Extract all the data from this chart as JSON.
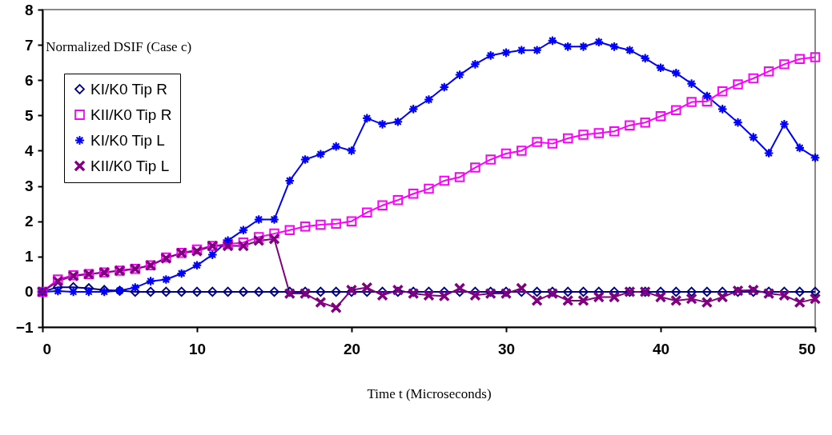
{
  "chart_data": {
    "type": "line",
    "title": "Normalized DSIF (Case c)",
    "xlabel": "Time t (Microseconds)",
    "x": [
      0,
      1,
      2,
      3,
      4,
      5,
      6,
      7,
      8,
      9,
      10,
      11,
      12,
      13,
      14,
      15,
      16,
      17,
      18,
      19,
      20,
      21,
      22,
      23,
      24,
      25,
      26,
      27,
      28,
      29,
      30,
      31,
      32,
      33,
      34,
      35,
      36,
      37,
      38,
      39,
      40,
      41,
      42,
      43,
      44,
      45,
      46,
      47,
      48,
      49,
      50
    ],
    "xlim": [
      0,
      50
    ],
    "xticks": [
      0,
      10,
      20,
      30,
      40,
      50
    ],
    "ylim": [
      -1,
      8
    ],
    "yticks": [
      -1,
      0,
      1,
      2,
      3,
      4,
      5,
      6,
      7,
      8
    ],
    "grid": false,
    "legend": "top left",
    "line_style": "solid",
    "series": [
      {
        "name": "KI/K0 Tip R",
        "color": "#000080",
        "marker": "diamond",
        "values": [
          0,
          0.13,
          0.13,
          0.1,
          0.05,
          0.03,
          0,
          0,
          0,
          0,
          0,
          0,
          0,
          0,
          0,
          0,
          0,
          0,
          0,
          0,
          0,
          0,
          0,
          0,
          0,
          0,
          0,
          0,
          0,
          0,
          0,
          0,
          0,
          0,
          0,
          0,
          0,
          0,
          0,
          0,
          0,
          0,
          0,
          0,
          0,
          0,
          0,
          0,
          0,
          0,
          0
        ]
      },
      {
        "name": "KII/K0 Tip R",
        "color": "#ff00ff",
        "marker": "square",
        "values": [
          0,
          0.35,
          0.47,
          0.5,
          0.55,
          0.6,
          0.65,
          0.75,
          0.97,
          1.1,
          1.2,
          1.3,
          1.35,
          1.4,
          1.55,
          1.65,
          1.75,
          1.85,
          1.9,
          1.93,
          2.0,
          2.25,
          2.45,
          2.6,
          2.78,
          2.92,
          3.15,
          3.25,
          3.52,
          3.75,
          3.92,
          4.0,
          4.25,
          4.2,
          4.35,
          4.45,
          4.5,
          4.55,
          4.72,
          4.8,
          4.98,
          5.15,
          5.38,
          5.4,
          5.68,
          5.88,
          6.05,
          6.25,
          6.45,
          6.6,
          6.65
        ]
      },
      {
        "name": "KI/K0 Tip L",
        "color": "#0000ff",
        "marker": "star",
        "values": [
          0,
          0.02,
          0,
          0,
          0,
          0.03,
          0.12,
          0.3,
          0.35,
          0.52,
          0.75,
          1.05,
          1.45,
          1.75,
          2.05,
          2.05,
          3.15,
          3.75,
          3.9,
          4.12,
          4.0,
          4.92,
          4.75,
          4.82,
          5.18,
          5.45,
          5.8,
          6.15,
          6.45,
          6.7,
          6.78,
          6.85,
          6.85,
          7.12,
          6.95,
          6.95,
          7.08,
          6.95,
          6.85,
          6.62,
          6.35,
          6.2,
          5.9,
          5.55,
          5.18,
          4.8,
          4.38,
          3.93,
          4.75,
          4.08,
          3.8
        ]
      },
      {
        "name": "KII/K0 Tip L",
        "color": "#800080",
        "marker": "cross",
        "values": [
          0,
          0.3,
          0.45,
          0.5,
          0.55,
          0.6,
          0.65,
          0.75,
          0.95,
          1.1,
          1.15,
          1.3,
          1.3,
          1.3,
          1.45,
          1.5,
          -0.05,
          -0.05,
          -0.3,
          -0.45,
          0.05,
          0.12,
          -0.1,
          0.05,
          -0.05,
          -0.1,
          -0.12,
          0.1,
          -0.1,
          -0.05,
          -0.05,
          0.1,
          -0.25,
          -0.05,
          -0.25,
          -0.25,
          -0.15,
          -0.15,
          0,
          0,
          -0.15,
          -0.25,
          -0.2,
          -0.3,
          -0.15,
          0.03,
          0.05,
          -0.05,
          -0.1,
          -0.3,
          -0.2
        ]
      }
    ]
  }
}
